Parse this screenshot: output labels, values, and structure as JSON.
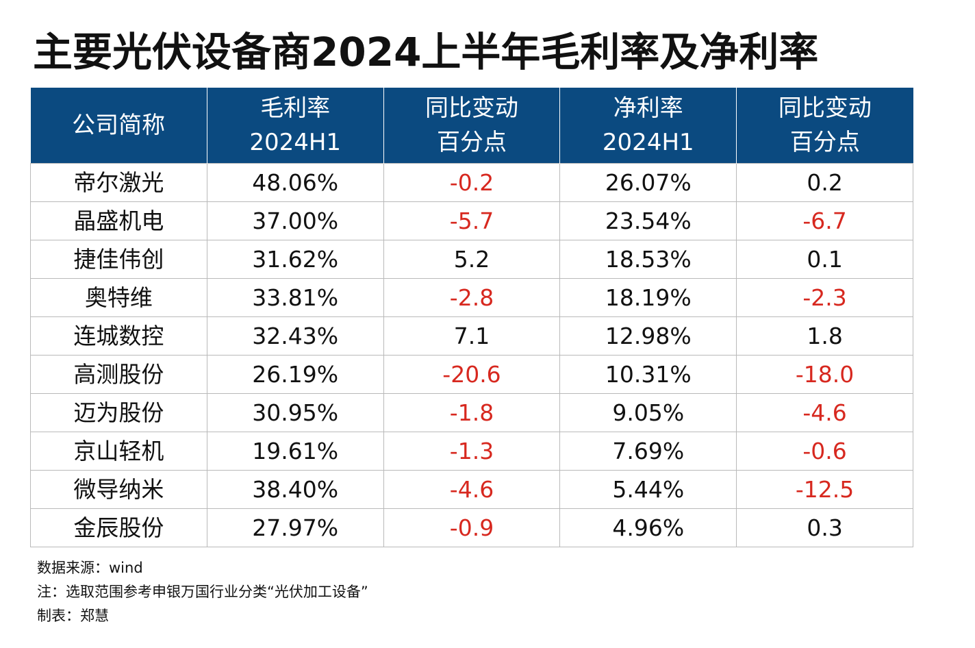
{
  "title": "主要光伏设备商2024上半年毛利率及净利率",
  "colors": {
    "header_bg": "#0b4a80",
    "header_text": "#ffffff",
    "negative": "#d7281f",
    "text": "#111111",
    "border": "#b9b9b9"
  },
  "chart_data": {
    "type": "table",
    "title": "主要光伏设备商2024上半年毛利率及净利率",
    "columns": [
      {
        "line1": "公司简称",
        "line2": ""
      },
      {
        "line1": "毛利率",
        "line2": "2024H1"
      },
      {
        "line1": "同比变动",
        "line2": "百分点"
      },
      {
        "line1": "净利率",
        "line2": "2024H1"
      },
      {
        "line1": "同比变动",
        "line2": "百分点"
      }
    ],
    "rows": [
      [
        "帝尔激光",
        "48.06%",
        "-0.2",
        "26.07%",
        "0.2"
      ],
      [
        "晶盛机电",
        "37.00%",
        "-5.7",
        "23.54%",
        "-6.7"
      ],
      [
        "捷佳伟创",
        "31.62%",
        "5.2",
        "18.53%",
        "0.1"
      ],
      [
        "奥特维",
        "33.81%",
        "-2.8",
        "18.19%",
        "-2.3"
      ],
      [
        "连城数控",
        "32.43%",
        "7.1",
        "12.98%",
        "1.8"
      ],
      [
        "高测股份",
        "26.19%",
        "-20.6",
        "10.31%",
        "-18.0"
      ],
      [
        "迈为股份",
        "30.95%",
        "-1.8",
        "9.05%",
        "-4.6"
      ],
      [
        "京山轻机",
        "19.61%",
        "-1.3",
        "7.69%",
        "-0.6"
      ],
      [
        "微导纳米",
        "38.40%",
        "-4.6",
        "5.44%",
        "-12.5"
      ],
      [
        "金辰股份",
        "27.97%",
        "-0.9",
        "4.96%",
        "0.3"
      ]
    ]
  },
  "notes": {
    "source": "数据来源：wind",
    "note": "注：选取范围参考申银万国行业分类“光伏加工设备”",
    "author": "制表：郑慧"
  }
}
